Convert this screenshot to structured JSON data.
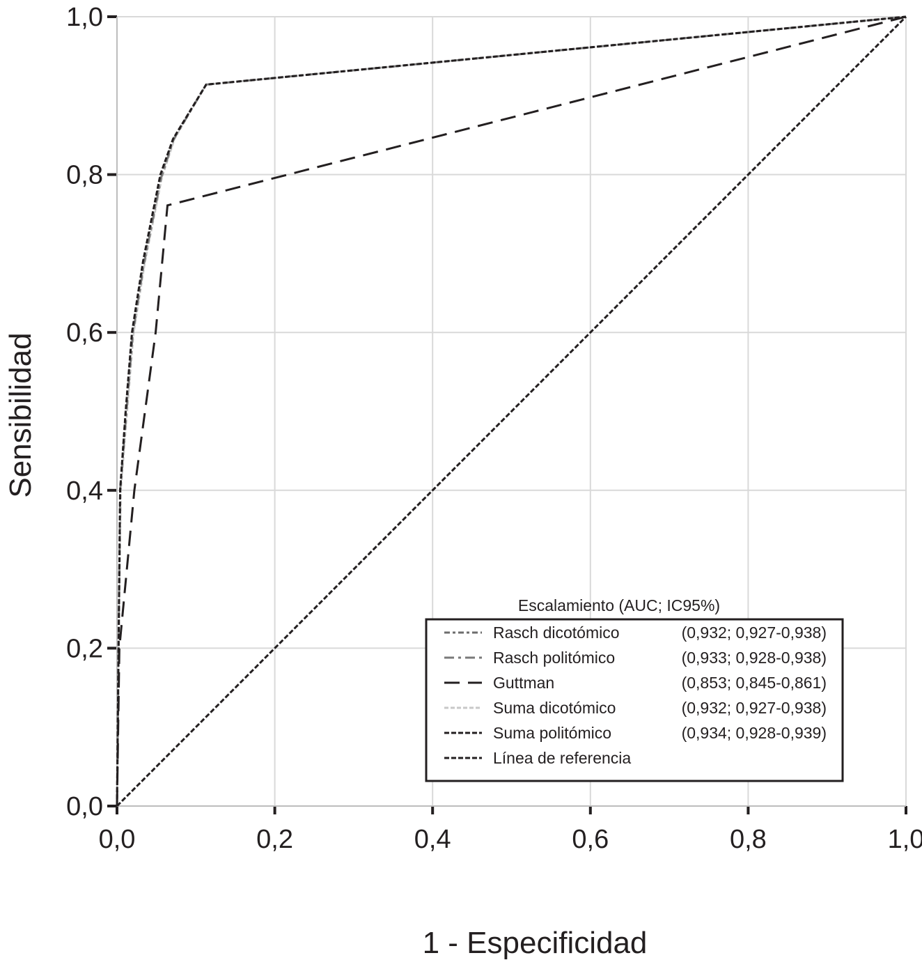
{
  "chart_data": {
    "type": "line",
    "title": "",
    "xlabel": "1 - Especificidad",
    "ylabel": "Sensibilidad",
    "xlim": [
      0,
      1
    ],
    "ylim": [
      0,
      1
    ],
    "grid": true,
    "xticks": [
      "0,0",
      "0,2",
      "0,4",
      "0,6",
      "0,8",
      "1,0"
    ],
    "yticks": [
      "0,0",
      "0,2",
      "0,4",
      "0,6",
      "0,8",
      "1,0"
    ],
    "tick_values": [
      0,
      0.2,
      0.4,
      0.6,
      0.8,
      1.0
    ],
    "legend": {
      "title": "Escalamiento (AUC; IC95%)",
      "placement": "bottom-right"
    },
    "series": [
      {
        "name": "Rasch dicotómico",
        "stats": "(0,932; 0,927-0,938)",
        "color": "#6d6d6d",
        "dash": "8 4 4 4",
        "x": [
          0,
          0.002,
          0.004,
          0.011,
          0.019,
          0.033,
          0.055,
          0.071,
          0.113,
          1
        ],
        "y": [
          0,
          0.2,
          0.4,
          0.5,
          0.598,
          0.686,
          0.796,
          0.845,
          0.914,
          1
        ]
      },
      {
        "name": "Rasch politómico",
        "stats": "(0,933; 0,928-0,938)",
        "color": "#7a7a7a",
        "dash": "14 6 4 6",
        "x": [
          0,
          0.002,
          0.004,
          0.012,
          0.02,
          0.034,
          0.056,
          0.072,
          0.113,
          1
        ],
        "y": [
          0,
          0.2,
          0.4,
          0.5,
          0.598,
          0.686,
          0.796,
          0.845,
          0.914,
          1
        ]
      },
      {
        "name": "Guttman",
        "stats": "(0,853; 0,845-0,861)",
        "color": "#231f20",
        "dash": "22 12",
        "x": [
          0,
          0.003,
          0.022,
          0.049,
          0.064,
          1
        ],
        "y": [
          0,
          0.2,
          0.4,
          0.6,
          0.761,
          1
        ]
      },
      {
        "name": "Suma dicotómico",
        "stats": "(0,932; 0,927-0,938)",
        "color": "#c8c8c8",
        "dash": "6 3",
        "x": [
          0,
          0.002,
          0.005,
          0.013,
          0.021,
          0.035,
          0.057,
          0.073,
          0.113,
          1
        ],
        "y": [
          0,
          0.2,
          0.4,
          0.5,
          0.598,
          0.686,
          0.796,
          0.845,
          0.914,
          1
        ]
      },
      {
        "name": "Suma politómico",
        "stats": "(0,934; 0,928-0,939)",
        "color": "#231f20",
        "dash": "7 3",
        "x": [
          0,
          0.002,
          0.004,
          0.011,
          0.019,
          0.033,
          0.055,
          0.071,
          0.113,
          1
        ],
        "y": [
          0,
          0.2,
          0.4,
          0.5,
          0.6,
          0.69,
          0.8,
          0.845,
          0.914,
          1
        ]
      },
      {
        "name": "Línea de referencia",
        "stats": "",
        "color": "#231f20",
        "dash": "7 3",
        "x": [
          0,
          1
        ],
        "y": [
          0,
          1
        ]
      }
    ]
  }
}
